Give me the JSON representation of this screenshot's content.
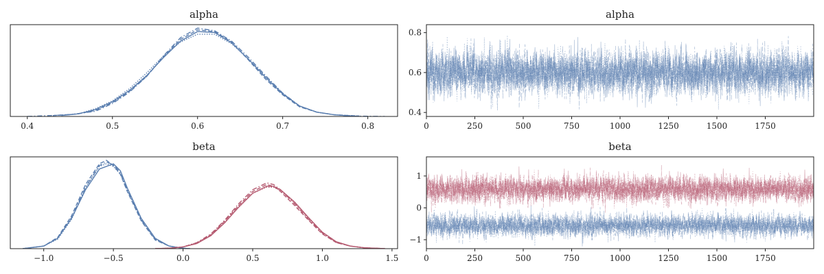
{
  "colors": {
    "blue": "#5b7fb0",
    "red": "#b55a70"
  },
  "chart_data": [
    {
      "type": "line",
      "title": "alpha",
      "kind": "density",
      "xlim": [
        0.38,
        0.835
      ],
      "ylim": [
        0,
        1.06
      ],
      "xticks": [
        0.4,
        0.5,
        0.6,
        0.7,
        0.8
      ],
      "xtick_labels": [
        "0.4",
        "0.5",
        "0.6",
        "0.7",
        "0.8"
      ],
      "yticks": [],
      "series": [
        {
          "color": "blue",
          "style": "solid",
          "x": [
            0.44,
            0.46,
            0.48,
            0.5,
            0.52,
            0.54,
            0.56,
            0.58,
            0.6,
            0.62,
            0.64,
            0.66,
            0.68,
            0.7,
            0.72,
            0.74,
            0.76,
            0.78
          ],
          "y": [
            0.01,
            0.03,
            0.08,
            0.17,
            0.3,
            0.47,
            0.68,
            0.87,
            0.98,
            0.97,
            0.85,
            0.66,
            0.45,
            0.26,
            0.12,
            0.05,
            0.02,
            0.005
          ]
        },
        {
          "color": "blue",
          "style": "dashed",
          "x": [
            0.43,
            0.46,
            0.48,
            0.5,
            0.52,
            0.54,
            0.56,
            0.58,
            0.6,
            0.62,
            0.64,
            0.66,
            0.68,
            0.7,
            0.72,
            0.74,
            0.76,
            0.79
          ],
          "y": [
            0.01,
            0.03,
            0.07,
            0.16,
            0.29,
            0.46,
            0.69,
            0.89,
            1.0,
            0.98,
            0.86,
            0.65,
            0.43,
            0.25,
            0.11,
            0.05,
            0.02,
            0.005
          ]
        },
        {
          "color": "blue",
          "style": "dashdot",
          "x": [
            0.4,
            0.45,
            0.48,
            0.5,
            0.52,
            0.54,
            0.56,
            0.58,
            0.6,
            0.62,
            0.64,
            0.66,
            0.68,
            0.7,
            0.72,
            0.74,
            0.76,
            0.78,
            0.82
          ],
          "y": [
            0.0,
            0.02,
            0.06,
            0.15,
            0.28,
            0.46,
            0.7,
            0.91,
            1.02,
            0.99,
            0.87,
            0.68,
            0.47,
            0.27,
            0.12,
            0.05,
            0.02,
            0.005,
            0.0
          ]
        },
        {
          "color": "blue",
          "style": "dotted",
          "x": [
            0.43,
            0.46,
            0.48,
            0.5,
            0.52,
            0.54,
            0.56,
            0.58,
            0.6,
            0.62,
            0.64,
            0.66,
            0.68,
            0.7,
            0.72,
            0.74,
            0.76,
            0.79
          ],
          "y": [
            0.01,
            0.03,
            0.09,
            0.18,
            0.32,
            0.5,
            0.7,
            0.86,
            0.95,
            0.95,
            0.84,
            0.66,
            0.46,
            0.27,
            0.12,
            0.05,
            0.02,
            0.005
          ]
        }
      ]
    },
    {
      "type": "line",
      "title": "alpha",
      "kind": "trace",
      "xlim": [
        0,
        2000
      ],
      "ylim": [
        0.38,
        0.84
      ],
      "xticks": [
        0,
        250,
        500,
        750,
        1000,
        1250,
        1500,
        1750
      ],
      "xtick_labels": [
        "0",
        "250",
        "500",
        "750",
        "1000",
        "1250",
        "1500",
        "1750"
      ],
      "yticks": [
        0.4,
        0.6,
        0.8
      ],
      "ytick_labels": [
        "0.4",
        "0.6",
        "0.8"
      ],
      "draws": 2000,
      "chains": 4,
      "series": [
        {
          "color": "blue",
          "mean": 0.6,
          "sd": 0.055
        }
      ]
    },
    {
      "type": "line",
      "title": "beta",
      "kind": "density",
      "xlim": [
        -1.24,
        1.54
      ],
      "ylim": [
        0,
        1.06
      ],
      "xticks": [
        -1.0,
        -0.5,
        0.0,
        0.5,
        1.0,
        1.5
      ],
      "xtick_labels": [
        "−1.0",
        "−0.5",
        "0.0",
        "0.5",
        "1.0",
        "1.5"
      ],
      "yticks": [],
      "series": [
        {
          "color": "blue",
          "style": "solid",
          "x": [
            -1.15,
            -1.0,
            -0.9,
            -0.8,
            -0.7,
            -0.6,
            -0.55,
            -0.5,
            -0.45,
            -0.4,
            -0.3,
            -0.2,
            -0.1,
            0.0,
            0.05
          ],
          "y": [
            0.0,
            0.03,
            0.12,
            0.35,
            0.68,
            0.92,
            0.95,
            0.98,
            0.9,
            0.7,
            0.35,
            0.12,
            0.03,
            0.005,
            0.0
          ]
        },
        {
          "color": "blue",
          "style": "dashed",
          "x": [
            -1.15,
            -1.0,
            -0.9,
            -0.8,
            -0.7,
            -0.6,
            -0.55,
            -0.5,
            -0.45,
            -0.4,
            -0.3,
            -0.2,
            -0.1,
            0.0,
            0.05
          ],
          "y": [
            0.0,
            0.03,
            0.13,
            0.38,
            0.74,
            0.98,
            1.02,
            0.96,
            0.86,
            0.66,
            0.32,
            0.1,
            0.03,
            0.005,
            0.0
          ]
        },
        {
          "color": "blue",
          "style": "dashdot",
          "x": [
            -1.15,
            -1.0,
            -0.9,
            -0.8,
            -0.7,
            -0.6,
            -0.55,
            -0.5,
            -0.45,
            -0.4,
            -0.3,
            -0.2,
            -0.1,
            0.0,
            0.05
          ],
          "y": [
            0.0,
            0.03,
            0.12,
            0.36,
            0.71,
            0.96,
            1.0,
            0.97,
            0.88,
            0.68,
            0.33,
            0.11,
            0.03,
            0.005,
            0.0
          ]
        },
        {
          "color": "blue",
          "style": "dotted",
          "x": [
            -1.15,
            -1.0,
            -0.9,
            -0.8,
            -0.7,
            -0.6,
            -0.55,
            -0.5,
            -0.45,
            -0.4,
            -0.3,
            -0.2,
            -0.1,
            0.0,
            0.05
          ],
          "y": [
            0.0,
            0.03,
            0.11,
            0.34,
            0.7,
            0.95,
            0.98,
            0.95,
            0.86,
            0.67,
            0.34,
            0.11,
            0.03,
            0.005,
            0.0
          ]
        },
        {
          "color": "red",
          "style": "solid",
          "x": [
            -0.2,
            -0.1,
            0.0,
            0.1,
            0.2,
            0.3,
            0.4,
            0.5,
            0.6,
            0.65,
            0.7,
            0.8,
            0.9,
            1.0,
            1.1,
            1.2,
            1.3,
            1.45
          ],
          "y": [
            0.0,
            0.005,
            0.02,
            0.06,
            0.15,
            0.3,
            0.48,
            0.64,
            0.72,
            0.72,
            0.68,
            0.54,
            0.36,
            0.19,
            0.08,
            0.03,
            0.01,
            0.0
          ]
        },
        {
          "color": "red",
          "style": "dashed",
          "x": [
            -0.2,
            -0.1,
            0.0,
            0.1,
            0.2,
            0.3,
            0.4,
            0.5,
            0.6,
            0.65,
            0.7,
            0.8,
            0.9,
            1.0,
            1.1,
            1.2,
            1.3,
            1.45
          ],
          "y": [
            0.0,
            0.005,
            0.02,
            0.06,
            0.16,
            0.32,
            0.5,
            0.66,
            0.74,
            0.72,
            0.66,
            0.5,
            0.33,
            0.17,
            0.07,
            0.03,
            0.01,
            0.0
          ]
        },
        {
          "color": "red",
          "style": "dashdot",
          "x": [
            -0.2,
            -0.1,
            0.0,
            0.1,
            0.2,
            0.3,
            0.4,
            0.5,
            0.6,
            0.65,
            0.7,
            0.8,
            0.9,
            1.0,
            1.1,
            1.2,
            1.3,
            1.45
          ],
          "y": [
            0.0,
            0.005,
            0.02,
            0.07,
            0.17,
            0.33,
            0.52,
            0.68,
            0.76,
            0.74,
            0.68,
            0.52,
            0.34,
            0.18,
            0.07,
            0.03,
            0.01,
            0.0
          ]
        },
        {
          "color": "red",
          "style": "dotted",
          "x": [
            -0.2,
            -0.1,
            0.0,
            0.1,
            0.2,
            0.3,
            0.4,
            0.5,
            0.6,
            0.65,
            0.7,
            0.8,
            0.9,
            1.0,
            1.1,
            1.2,
            1.3,
            1.45
          ],
          "y": [
            0.0,
            0.005,
            0.02,
            0.07,
            0.16,
            0.31,
            0.49,
            0.64,
            0.71,
            0.71,
            0.67,
            0.53,
            0.35,
            0.19,
            0.08,
            0.03,
            0.01,
            0.0
          ]
        }
      ]
    },
    {
      "type": "line",
      "title": "beta",
      "kind": "trace",
      "xlim": [
        0,
        2000
      ],
      "ylim": [
        -1.28,
        1.6
      ],
      "xticks": [
        0,
        250,
        500,
        750,
        1000,
        1250,
        1500,
        1750
      ],
      "xtick_labels": [
        "0",
        "250",
        "500",
        "750",
        "1000",
        "1250",
        "1500",
        "1750"
      ],
      "yticks": [
        -1,
        0,
        1
      ],
      "ytick_labels": [
        "−1",
        "0",
        "1"
      ],
      "draws": 2000,
      "chains": 4,
      "series": [
        {
          "color": "red",
          "mean": 0.58,
          "sd": 0.2
        },
        {
          "color": "blue",
          "mean": -0.55,
          "sd": 0.17
        }
      ]
    }
  ]
}
